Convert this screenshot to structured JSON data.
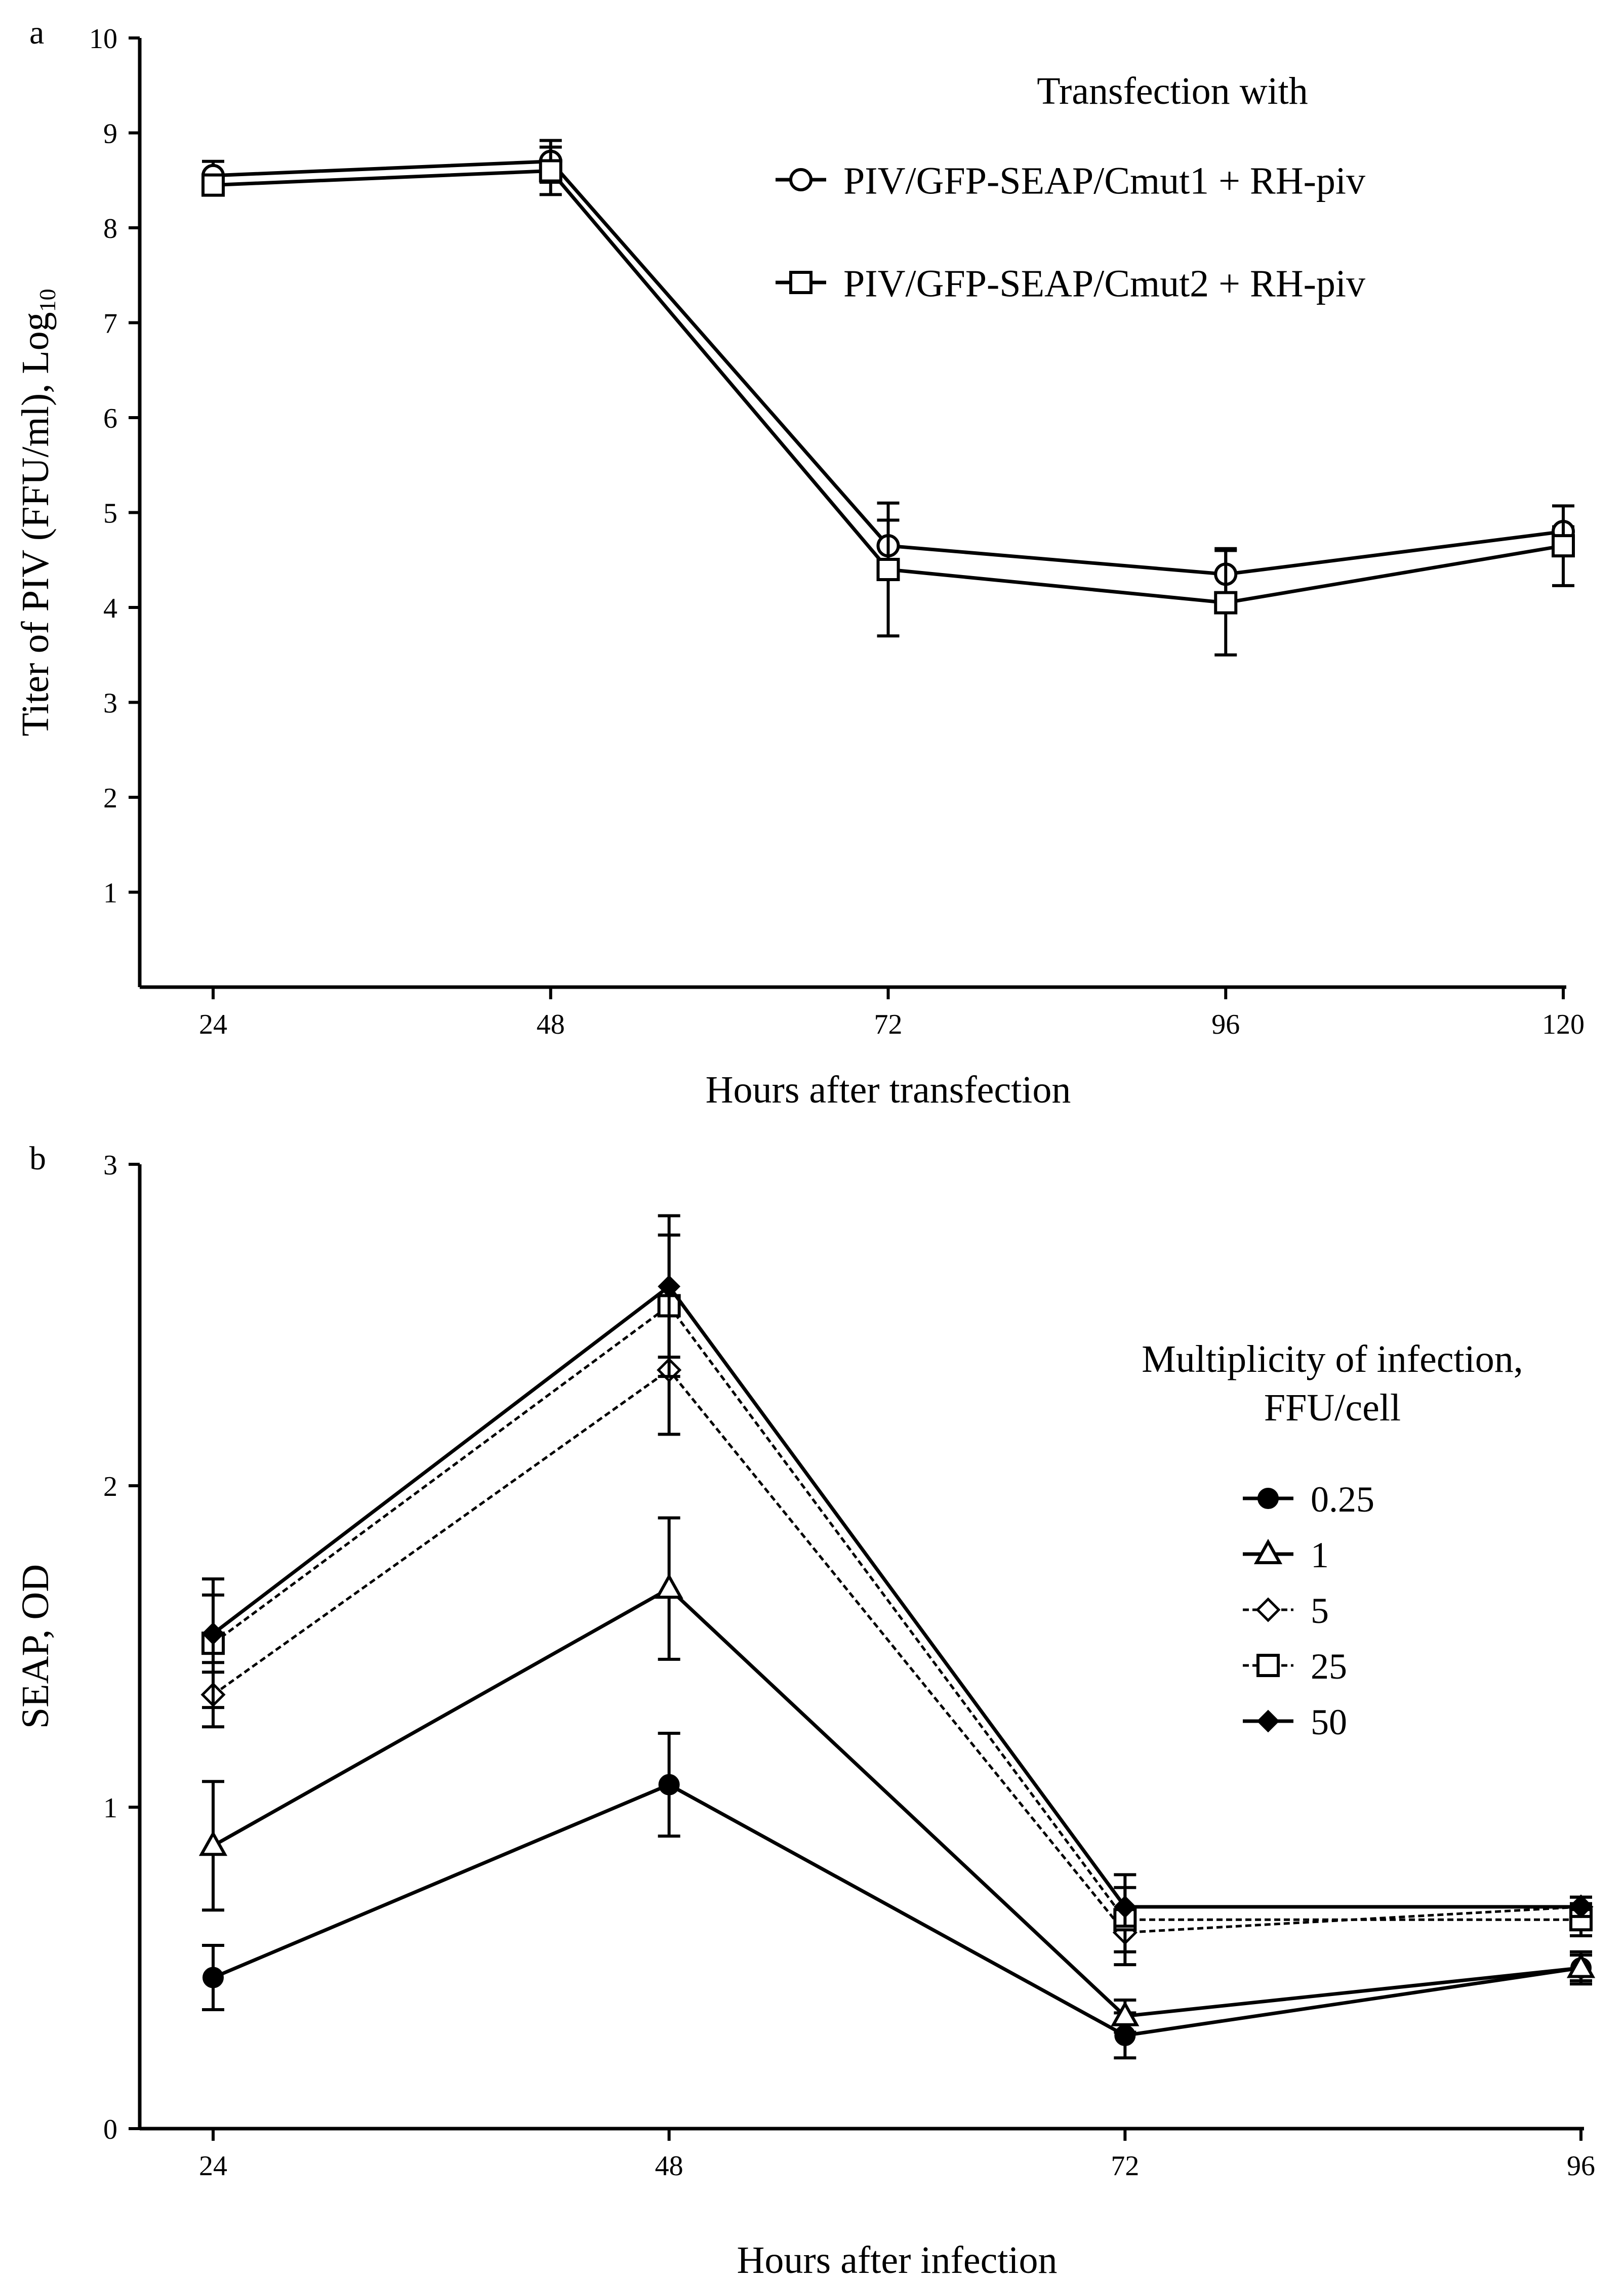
{
  "panels": [
    {
      "panel_label": "a",
      "chart_data": {
        "type": "line",
        "xlabel": "Hours after transfection",
        "ylabel": "Titer of PIV (FFU/ml), Log",
        "ylabel_sub": "10",
        "x": [
          24,
          48,
          72,
          96,
          120
        ],
        "x_ticks": [
          "24",
          "48",
          "72",
          "96",
          "120"
        ],
        "y_ticks": [
          "1",
          "2",
          "3",
          "4",
          "5",
          "6",
          "7",
          "8",
          "9",
          "10"
        ],
        "xlim": [
          24,
          120
        ],
        "ylim": [
          0,
          10
        ],
        "grid": false,
        "legend_title": "Transfection with",
        "legend_position": "top-right",
        "series": [
          {
            "name": "PIV/GFP-SEAP/Cmut1 + RH-piv",
            "marker": "circle-open",
            "line": "solid",
            "color": "#000000",
            "values": [
              8.55,
              8.7,
              4.65,
              4.35,
              4.8
            ],
            "errors": [
              0.15,
              0.22,
              0.27,
              0.27,
              0.05
            ]
          },
          {
            "name": "PIV/GFP-SEAP/Cmut2 + RH-piv",
            "marker": "square-open",
            "line": "solid",
            "color": "#000000",
            "values": [
              8.45,
              8.6,
              4.4,
              4.05,
              4.65
            ],
            "errors": [
              0.1,
              0.25,
              0.7,
              0.55,
              0.42
            ]
          }
        ]
      }
    },
    {
      "panel_label": "b",
      "chart_data": {
        "type": "line",
        "xlabel": "Hours after infection",
        "ylabel": "SEAP, OD",
        "x": [
          24,
          48,
          72,
          96
        ],
        "x_ticks": [
          "24",
          "48",
          "72",
          "96"
        ],
        "y_ticks": [
          "0",
          "1",
          "2",
          "3"
        ],
        "xlim": [
          24,
          96
        ],
        "ylim": [
          0,
          3
        ],
        "grid": false,
        "legend_title": [
          "Multiplicity of infection,",
          "FFU/cell"
        ],
        "legend_position": "right",
        "series": [
          {
            "name": "0.25",
            "marker": "circle-filled",
            "line": "solid",
            "color": "#000000",
            "values": [
              0.47,
              1.07,
              0.29,
              0.5
            ],
            "errors": [
              0.1,
              0.16,
              0.07,
              0.04
            ]
          },
          {
            "name": "1",
            "marker": "triangle-open",
            "line": "solid",
            "color": "#000000",
            "values": [
              0.88,
              1.68,
              0.35,
              0.5
            ],
            "errors": [
              0.2,
              0.22,
              0.05,
              0.05
            ]
          },
          {
            "name": "5",
            "marker": "diamond-open",
            "line": "dashed",
            "color": "#000000",
            "values": [
              1.35,
              2.36,
              0.61,
              0.69
            ],
            "errors": [
              0.1,
              0.2,
              0.06,
              0.03
            ]
          },
          {
            "name": "25",
            "marker": "square-open",
            "line": "dashed",
            "color": "#000000",
            "values": [
              1.51,
              2.56,
              0.65,
              0.65
            ],
            "errors": [
              0.2,
              0.22,
              0.14,
              0.05
            ]
          },
          {
            "name": "50",
            "marker": "diamond-filled",
            "line": "solid",
            "color": "#000000",
            "values": [
              1.54,
              2.62,
              0.69,
              0.69
            ],
            "errors": [
              0.12,
              0.22,
              0.06,
              0.03
            ]
          }
        ]
      }
    }
  ]
}
